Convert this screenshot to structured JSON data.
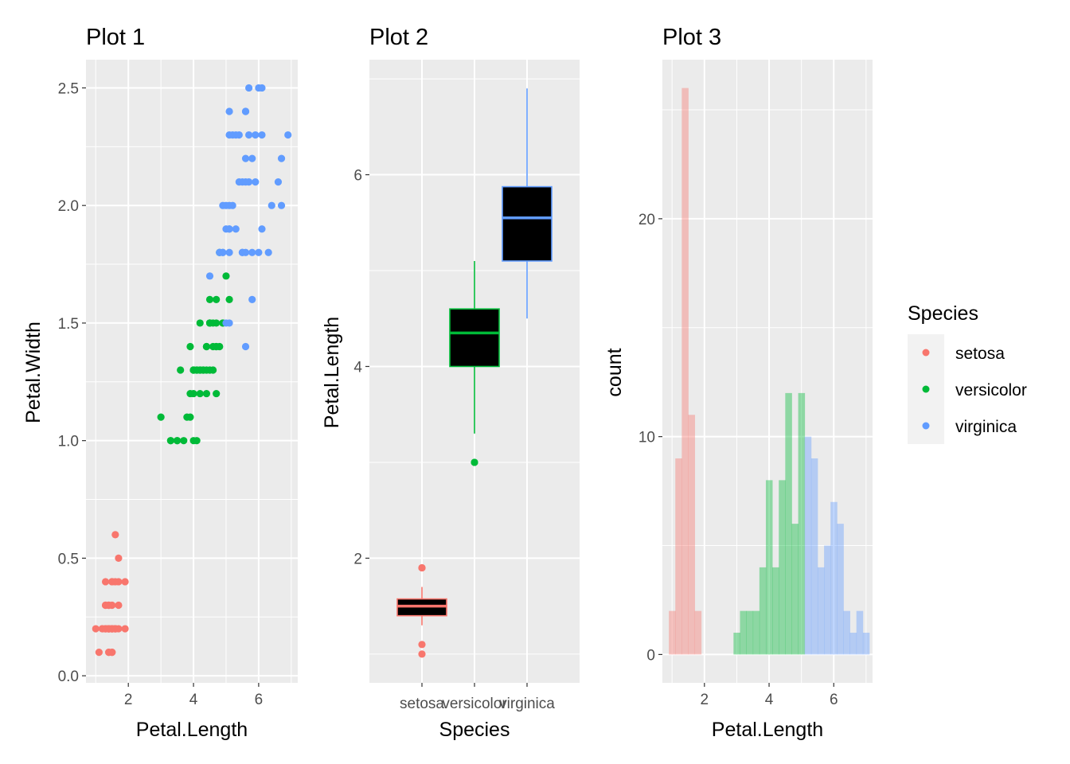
{
  "colors": {
    "panel_bg": "#EBEBEB",
    "grid": "#FFFFFF",
    "setosa": "#F8766D",
    "versicolor": "#00BA38",
    "virginica": "#619CFF",
    "tick": "#333333",
    "box_fill": "#000000"
  },
  "legend": {
    "title": "Species",
    "placement": "right",
    "entries": [
      "setosa",
      "versicolor",
      "virginica"
    ]
  },
  "chart_data": [
    {
      "type": "scatter",
      "title": "Plot 1",
      "xlabel": "Petal.Length",
      "ylabel": "Petal.Width",
      "xlim": [
        0.7,
        7.2
      ],
      "ylim": [
        -0.03,
        2.62
      ],
      "xticks": [
        2,
        4,
        6
      ],
      "xtick_labels": [
        "2",
        "4",
        "6"
      ],
      "yticks": [
        0,
        0.5,
        1,
        1.5,
        2,
        2.5
      ],
      "ytick_labels": [
        "0.0",
        "0.5",
        "1.0",
        "1.5",
        "2.0",
        "2.5"
      ],
      "grid": true,
      "series": [
        {
          "name": "setosa",
          "x": [
            1.4,
            1.4,
            1.3,
            1.5,
            1.4,
            1.7,
            1.4,
            1.5,
            1.4,
            1.5,
            1.5,
            1.6,
            1.4,
            1.1,
            1.2,
            1.5,
            1.3,
            1.4,
            1.7,
            1.5,
            1.7,
            1.5,
            1.0,
            1.7,
            1.9,
            1.6,
            1.6,
            1.5,
            1.4,
            1.6,
            1.6,
            1.5,
            1.5,
            1.4,
            1.5,
            1.2,
            1.3,
            1.4,
            1.3,
            1.5,
            1.3,
            1.3,
            1.3,
            1.6,
            1.9,
            1.4,
            1.6,
            1.4,
            1.5,
            1.4
          ],
          "y": [
            0.2,
            0.2,
            0.2,
            0.2,
            0.2,
            0.4,
            0.3,
            0.2,
            0.2,
            0.1,
            0.2,
            0.2,
            0.1,
            0.1,
            0.2,
            0.4,
            0.4,
            0.3,
            0.3,
            0.3,
            0.2,
            0.4,
            0.2,
            0.5,
            0.2,
            0.2,
            0.4,
            0.2,
            0.2,
            0.2,
            0.2,
            0.4,
            0.1,
            0.2,
            0.2,
            0.2,
            0.2,
            0.1,
            0.2,
            0.2,
            0.3,
            0.3,
            0.2,
            0.6,
            0.4,
            0.3,
            0.2,
            0.2,
            0.2,
            0.2
          ]
        },
        {
          "name": "versicolor",
          "x": [
            4.7,
            4.5,
            4.9,
            4.0,
            4.6,
            4.5,
            4.7,
            3.3,
            4.6,
            3.9,
            3.5,
            4.2,
            4.0,
            4.7,
            3.6,
            4.4,
            4.5,
            4.1,
            4.5,
            3.9,
            4.8,
            4.0,
            4.9,
            4.7,
            4.3,
            4.4,
            4.8,
            5.0,
            4.5,
            3.5,
            3.8,
            3.7,
            3.9,
            5.1,
            4.5,
            4.5,
            4.7,
            4.4,
            4.1,
            4.0,
            4.4,
            4.6,
            4.0,
            3.3,
            4.2,
            4.2,
            4.2,
            4.3,
            3.0,
            4.1
          ],
          "y": [
            1.4,
            1.5,
            1.5,
            1.3,
            1.5,
            1.3,
            1.6,
            1.0,
            1.3,
            1.4,
            1.0,
            1.5,
            1.0,
            1.4,
            1.3,
            1.4,
            1.5,
            1.0,
            1.5,
            1.1,
            1.8,
            1.3,
            1.5,
            1.2,
            1.3,
            1.4,
            1.4,
            1.7,
            1.5,
            1.0,
            1.1,
            1.0,
            1.2,
            1.6,
            1.5,
            1.6,
            1.5,
            1.3,
            1.3,
            1.3,
            1.2,
            1.4,
            1.2,
            1.0,
            1.3,
            1.2,
            1.3,
            1.3,
            1.1,
            1.3
          ]
        },
        {
          "name": "virginica",
          "x": [
            6.0,
            5.1,
            5.9,
            5.6,
            5.8,
            6.6,
            4.5,
            6.3,
            5.8,
            6.1,
            5.1,
            5.3,
            5.5,
            5.0,
            5.1,
            5.3,
            5.5,
            6.7,
            6.9,
            5.0,
            5.7,
            4.9,
            6.7,
            4.9,
            5.7,
            6.0,
            4.8,
            4.9,
            5.6,
            5.8,
            6.1,
            6.4,
            5.6,
            5.1,
            5.6,
            6.1,
            5.6,
            5.5,
            4.8,
            5.4,
            5.6,
            5.1,
            5.1,
            5.9,
            5.7,
            5.2,
            5.0,
            5.2,
            5.4,
            5.1
          ],
          "y": [
            2.5,
            1.9,
            2.1,
            1.8,
            2.2,
            2.1,
            1.7,
            1.8,
            1.8,
            2.5,
            2.0,
            1.9,
            2.1,
            2.0,
            2.4,
            2.3,
            1.8,
            2.2,
            2.3,
            1.5,
            2.3,
            2.0,
            2.0,
            1.8,
            2.1,
            1.8,
            1.8,
            1.8,
            2.1,
            1.6,
            1.9,
            2.0,
            2.2,
            1.5,
            1.4,
            2.3,
            2.4,
            1.8,
            1.8,
            2.1,
            2.4,
            2.3,
            1.9,
            2.3,
            2.5,
            2.3,
            1.9,
            2.0,
            2.3,
            1.8
          ]
        }
      ]
    },
    {
      "type": "box",
      "title": "Plot 2",
      "xlabel": "Species",
      "ylabel": "Petal.Length",
      "categories": [
        "setosa",
        "versicolor",
        "virginica"
      ],
      "ylim": [
        0.7,
        7.2
      ],
      "yticks": [
        2,
        4,
        6
      ],
      "ytick_labels": [
        "2",
        "4",
        "6"
      ],
      "grid": true,
      "boxes": [
        {
          "name": "setosa",
          "lower_whisker": 1.3,
          "q1": 1.4,
          "median": 1.5,
          "q3": 1.575,
          "upper_whisker": 1.7,
          "outliers": [
            1.1,
            1.0,
            1.9,
            1.9
          ]
        },
        {
          "name": "versicolor",
          "lower_whisker": 3.3,
          "q1": 4.0,
          "median": 4.35,
          "q3": 4.6,
          "upper_whisker": 5.1,
          "outliers": [
            3.0
          ]
        },
        {
          "name": "virginica",
          "lower_whisker": 4.5,
          "q1": 5.1,
          "median": 5.55,
          "q3": 5.875,
          "upper_whisker": 6.9,
          "outliers": []
        }
      ]
    },
    {
      "type": "histogram",
      "title": "Plot 3",
      "xlabel": "Petal.Length",
      "ylabel": "count",
      "xlim": [
        0.7,
        7.2
      ],
      "ylim": [
        -1.3,
        27.3
      ],
      "xticks": [
        2,
        4,
        6
      ],
      "xtick_labels": [
        "2",
        "4",
        "6"
      ],
      "yticks": [
        0,
        10,
        20
      ],
      "ytick_labels": [
        "0",
        "10",
        "20"
      ],
      "grid": true,
      "bin_edges": [
        0.9,
        1.1,
        1.3,
        1.5,
        1.7,
        1.9,
        2.1,
        2.3,
        2.5,
        2.7,
        2.9,
        3.1,
        3.3,
        3.5,
        3.7,
        3.9,
        4.1,
        4.3,
        4.5,
        4.7,
        4.9,
        5.1,
        5.3,
        5.5,
        5.7,
        5.9,
        6.1,
        6.3,
        6.5,
        6.7,
        6.9,
        7.1
      ],
      "series": [
        {
          "name": "setosa",
          "counts": [
            2,
            9,
            26,
            11,
            2,
            0,
            0,
            0,
            0,
            0,
            0,
            0,
            0,
            0,
            0,
            0,
            0,
            0,
            0,
            0,
            0,
            0,
            0,
            0,
            0,
            0,
            0,
            0,
            0,
            0,
            0
          ]
        },
        {
          "name": "versicolor",
          "counts": [
            0,
            0,
            0,
            0,
            0,
            0,
            0,
            0,
            0,
            0,
            1,
            2,
            2,
            2,
            4,
            8,
            4,
            8,
            12,
            6,
            12,
            0,
            0,
            0,
            0,
            0,
            0,
            0,
            0,
            0,
            0
          ]
        },
        {
          "name": "virginica",
          "counts": [
            0,
            0,
            0,
            0,
            0,
            0,
            0,
            0,
            0,
            0,
            0,
            0,
            0,
            0,
            0,
            0,
            0,
            0,
            0,
            0,
            0,
            10,
            9,
            4,
            5,
            7,
            6,
            2,
            1,
            2,
            1
          ]
        }
      ]
    }
  ]
}
